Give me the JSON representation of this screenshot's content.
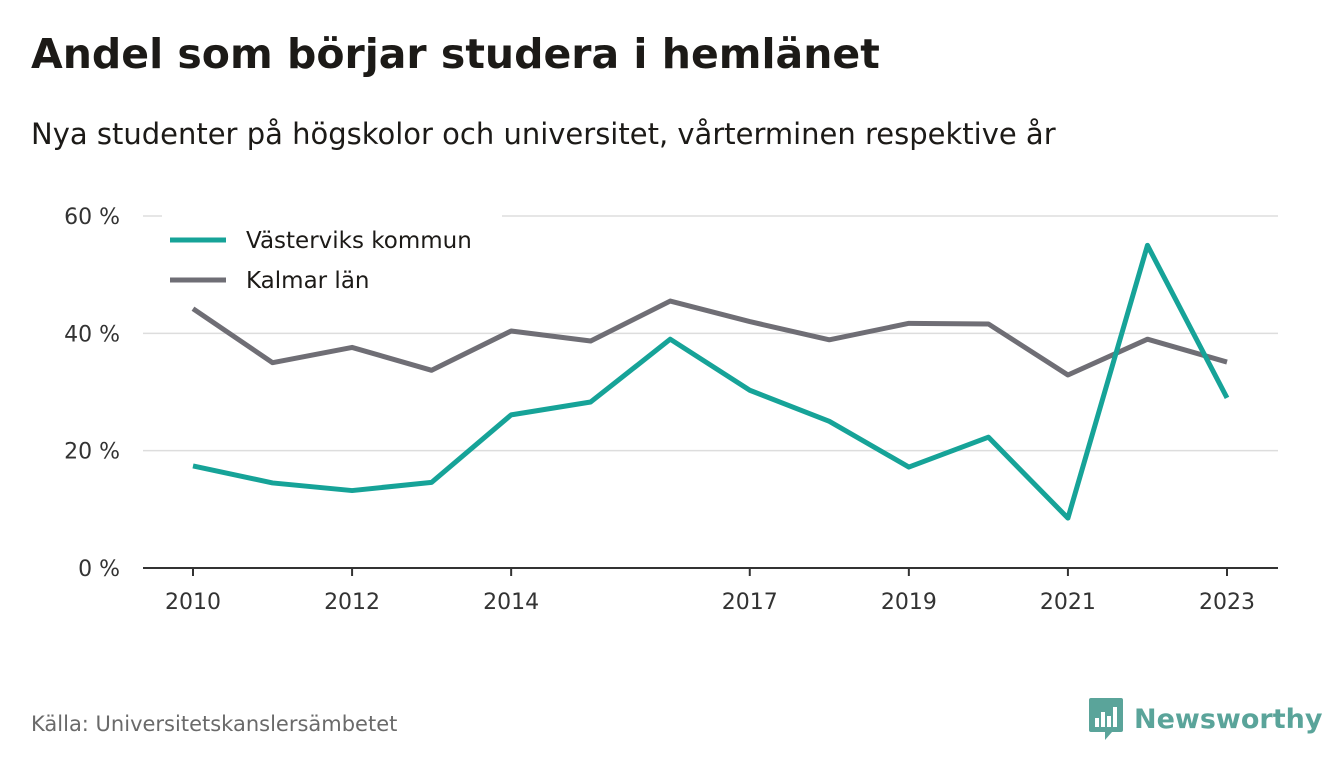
{
  "header": {
    "title": "Andel som börjar studera i hemlänet",
    "subtitle": "Nya studenter på högskolor och universitet, vårterminen respektive år"
  },
  "footer": {
    "source": "Källa: Universitetskanslersämbetet",
    "brand": "Newsworthy"
  },
  "colors": {
    "teal": "#16a398",
    "gray": "#6f6e75",
    "grid": "#dddddd",
    "axis": "#333333",
    "brand": "#5aa49a"
  },
  "icons": {
    "brand_logo": "newsworthy-logo-icon"
  },
  "chart_data": {
    "type": "line",
    "title": "Andel som börjar studera i hemlänet",
    "subtitle": "Nya studenter på högskolor och universitet, vårterminen respektive år",
    "x": [
      2010,
      2011,
      2012,
      2013,
      2014,
      2015,
      2016,
      2017,
      2018,
      2019,
      2020,
      2021,
      2022,
      2023
    ],
    "x_tick_labels": [
      "2010",
      "2012",
      "2014",
      "2017",
      "2019",
      "2021",
      "2023"
    ],
    "ylim": [
      0,
      60
    ],
    "y_ticks": [
      0,
      20,
      40,
      60
    ],
    "y_tick_labels": [
      "0 %",
      "20 %",
      "40 %",
      "60 %"
    ],
    "grid": true,
    "legend_position": "top-left",
    "series": [
      {
        "name": "Västerviks kommun",
        "color": "#16a398",
        "values": [
          17.4,
          14.5,
          13.2,
          14.6,
          26.1,
          28.3,
          39.0,
          30.3,
          25.0,
          17.2,
          22.3,
          8.5,
          55.0,
          29.0
        ]
      },
      {
        "name": "Kalmar län",
        "color": "#6f6e75",
        "values": [
          44.2,
          35.0,
          37.6,
          33.7,
          40.4,
          38.7,
          45.5,
          42.0,
          38.9,
          41.7,
          41.6,
          32.9,
          39.0,
          35.1
        ]
      }
    ]
  }
}
